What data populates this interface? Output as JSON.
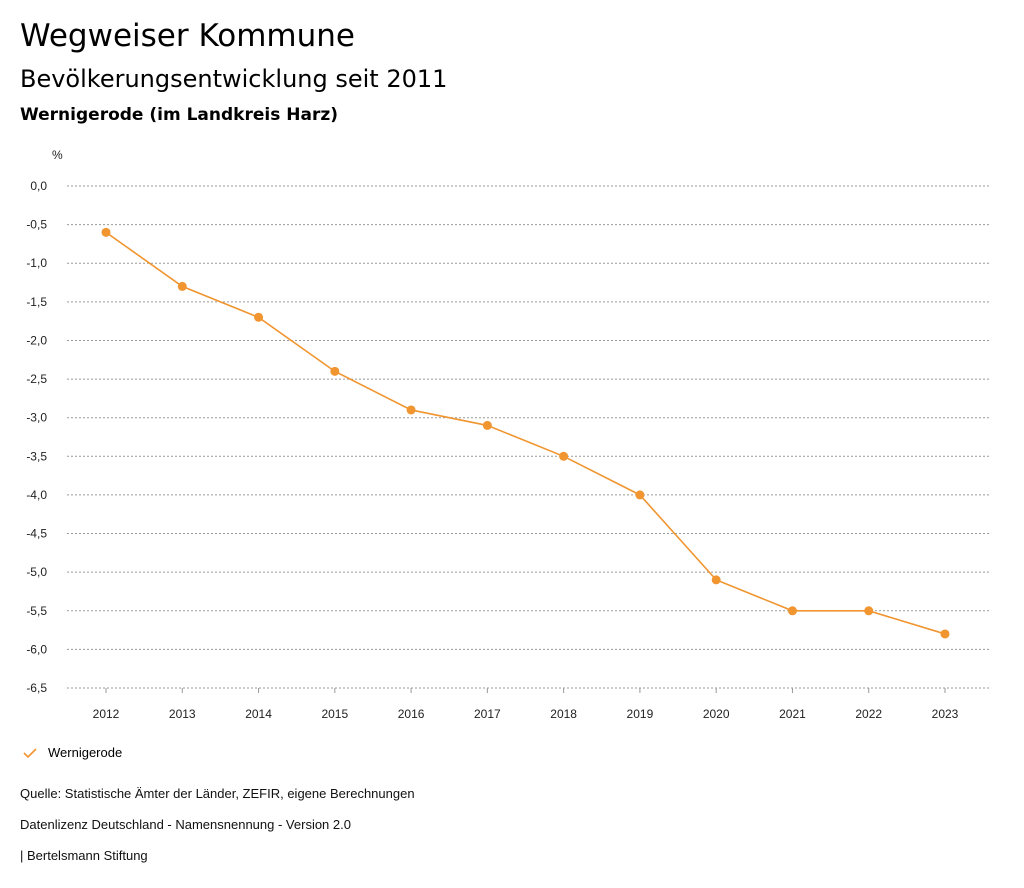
{
  "header": {
    "title": "Wegweiser Kommune",
    "subtitle": "Bevölkerungsentwicklung seit 2011",
    "region": "Wernigerode (im Landkreis Harz)"
  },
  "chart_data": {
    "type": "line",
    "ylabel": "%",
    "x": [
      "2012",
      "2013",
      "2014",
      "2015",
      "2016",
      "2017",
      "2018",
      "2019",
      "2020",
      "2021",
      "2022",
      "2023"
    ],
    "series": [
      {
        "name": "Wernigerode",
        "color": "#f0952f",
        "values": [
          -0.6,
          -1.3,
          -1.7,
          -2.4,
          -2.9,
          -3.1,
          -3.5,
          -4.0,
          -5.1,
          -5.5,
          -5.5,
          -5.8
        ]
      }
    ],
    "ylim": [
      -6.5,
      0
    ],
    "yticks": [
      "0,0",
      "-0,5",
      "-1,0",
      "-1,5",
      "-2,0",
      "-2,5",
      "-3,0",
      "-3,5",
      "-4,0",
      "-4,5",
      "-5,0",
      "-5,5",
      "-6,0",
      "-6,5"
    ],
    "grid": true,
    "legend": "bottom-left"
  },
  "footer": {
    "source": "Quelle: Statistische Ämter der Länder, ZEFIR, eigene Berechnungen",
    "license": "Datenlizenz Deutschland - Namensnennung - Version 2.0",
    "publisher": "| Bertelsmann Stiftung"
  }
}
